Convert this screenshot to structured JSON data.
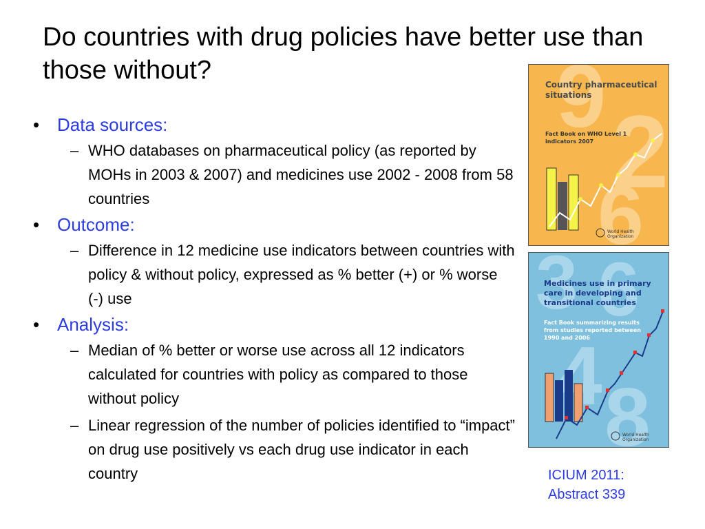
{
  "title": "Do countries with drug policies have better use than those without?",
  "sections": [
    {
      "heading": "Data sources:",
      "items": [
        "WHO databases on pharmaceutical policy (as reported by MOHs in 2003 & 2007) and medicines use 2002 - 2008 from 58 countries"
      ]
    },
    {
      "heading": "Outcome:",
      "items": [
        "Difference in 12 medicine use indicators between countries with policy & without policy, expressed as % better (+) or % worse (-) use"
      ]
    },
    {
      "heading": "Analysis:",
      "items": [
        "Median of % better or worse use across all 12 indicators calculated for countries with policy as compared to those without policy",
        "Linear regression of the number of policies identified to “impact” on drug use positively vs each drug use indicator in each country"
      ]
    }
  ],
  "bullet_glyph": "•",
  "dash_glyph": "–",
  "cover1": {
    "title": "Country pharmaceutical situations",
    "subtitle": "Fact Book on WHO Level 1 indicators 2007",
    "logo_text": "World Health Organization"
  },
  "cover2": {
    "title": "Medicines use in primary care in developing and transitional countries",
    "subtitle": "Fact Book summarizing results from studies reported between 1990 and 2006",
    "logo_text": "World Health Organization"
  },
  "caption_line1": "ICIUM 2011:",
  "caption_line2": "Abstract 339",
  "colors": {
    "accent": "#2c3ce0",
    "cover1_bg": "#f7b74e",
    "cover2_bg": "#7ec0dd"
  }
}
